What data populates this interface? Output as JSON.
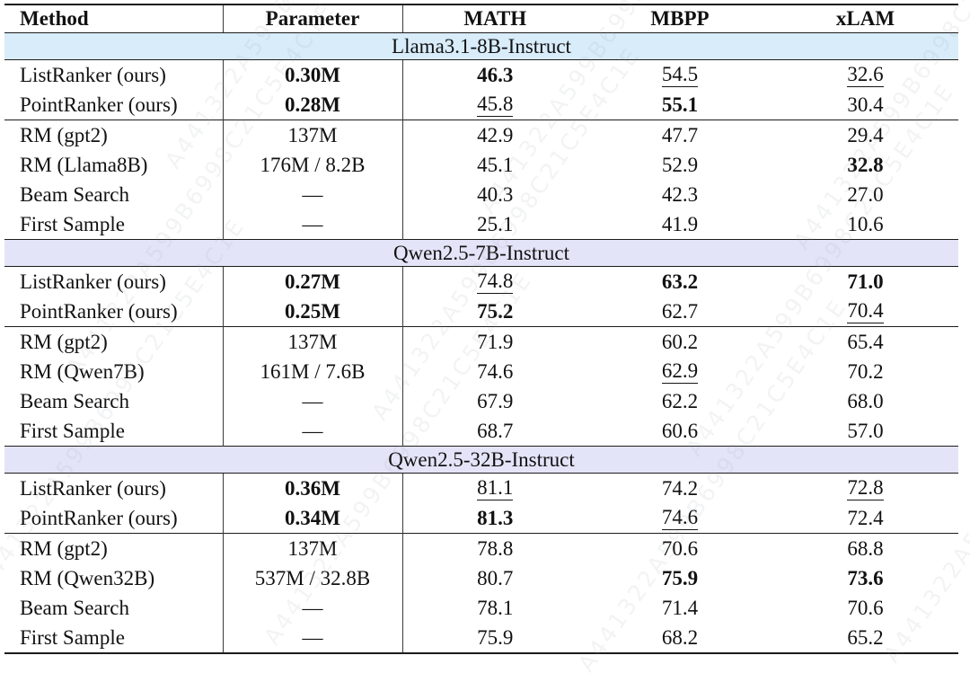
{
  "watermark": {
    "text": "A441322A599B6998C21C5E4C1E"
  },
  "colors": {
    "band_llama": "#d8ecfa",
    "band_qwen": "#e4e4f9",
    "rule": "#1c1c1c",
    "text": "#111111"
  },
  "table": {
    "columns": [
      "Method",
      "Parameter",
      "MATH",
      "MBPP",
      "xLAM"
    ],
    "sections": [
      {
        "title": "Llama3.1-8B-Instruct",
        "band_color": "#d8ecfa",
        "groups": [
          {
            "rows": [
              {
                "method": "ListRanker (ours)",
                "parameter": {
                  "text": "0.30M",
                  "bold": true
                },
                "values": [
                  {
                    "text": "46.3",
                    "bold": true
                  },
                  {
                    "text": "54.5",
                    "underline": true
                  },
                  {
                    "text": "32.6",
                    "underline": true
                  }
                ]
              },
              {
                "method": "PointRanker (ours)",
                "parameter": {
                  "text": "0.28M",
                  "bold": true
                },
                "values": [
                  {
                    "text": "45.8",
                    "underline": true
                  },
                  {
                    "text": "55.1",
                    "bold": true
                  },
                  {
                    "text": "30.4"
                  }
                ]
              }
            ]
          },
          {
            "rows": [
              {
                "method": "RM (gpt2)",
                "parameter": {
                  "text": "137M"
                },
                "values": [
                  {
                    "text": "42.9"
                  },
                  {
                    "text": "47.7"
                  },
                  {
                    "text": "29.4"
                  }
                ]
              },
              {
                "method": "RM (Llama8B)",
                "parameter": {
                  "text": "176M / 8.2B"
                },
                "values": [
                  {
                    "text": "45.1"
                  },
                  {
                    "text": "52.9"
                  },
                  {
                    "text": "32.8",
                    "bold": true
                  }
                ]
              },
              {
                "method": "Beam Search",
                "parameter": {
                  "text": "—"
                },
                "values": [
                  {
                    "text": "40.3"
                  },
                  {
                    "text": "42.3"
                  },
                  {
                    "text": "27.0"
                  }
                ]
              },
              {
                "method": "First Sample",
                "parameter": {
                  "text": "—"
                },
                "values": [
                  {
                    "text": "25.1"
                  },
                  {
                    "text": "41.9"
                  },
                  {
                    "text": "10.6"
                  }
                ]
              }
            ]
          }
        ]
      },
      {
        "title": "Qwen2.5-7B-Instruct",
        "band_color": "#e4e4f9",
        "groups": [
          {
            "rows": [
              {
                "method": "ListRanker (ours)",
                "parameter": {
                  "text": "0.27M",
                  "bold": true
                },
                "values": [
                  {
                    "text": "74.8",
                    "underline": true
                  },
                  {
                    "text": "63.2",
                    "bold": true
                  },
                  {
                    "text": "71.0",
                    "bold": true
                  }
                ]
              },
              {
                "method": "PointRanker (ours)",
                "parameter": {
                  "text": "0.25M",
                  "bold": true
                },
                "values": [
                  {
                    "text": "75.2",
                    "bold": true
                  },
                  {
                    "text": "62.7"
                  },
                  {
                    "text": "70.4",
                    "underline": true
                  }
                ]
              }
            ]
          },
          {
            "rows": [
              {
                "method": "RM (gpt2)",
                "parameter": {
                  "text": "137M"
                },
                "values": [
                  {
                    "text": "71.9"
                  },
                  {
                    "text": "60.2"
                  },
                  {
                    "text": "65.4"
                  }
                ]
              },
              {
                "method": "RM (Qwen7B)",
                "parameter": {
                  "text": "161M / 7.6B"
                },
                "values": [
                  {
                    "text": "74.6"
                  },
                  {
                    "text": "62.9",
                    "underline": true
                  },
                  {
                    "text": "70.2"
                  }
                ]
              },
              {
                "method": "Beam Search",
                "parameter": {
                  "text": "—"
                },
                "values": [
                  {
                    "text": "67.9"
                  },
                  {
                    "text": "62.2"
                  },
                  {
                    "text": "68.0"
                  }
                ]
              },
              {
                "method": "First Sample",
                "parameter": {
                  "text": "—"
                },
                "values": [
                  {
                    "text": "68.7"
                  },
                  {
                    "text": "60.6"
                  },
                  {
                    "text": "57.0"
                  }
                ]
              }
            ]
          }
        ]
      },
      {
        "title": "Qwen2.5-32B-Instruct",
        "band_color": "#e4e4f9",
        "groups": [
          {
            "rows": [
              {
                "method": "ListRanker (ours)",
                "parameter": {
                  "text": "0.36M",
                  "bold": true
                },
                "values": [
                  {
                    "text": "81.1",
                    "underline": true
                  },
                  {
                    "text": "74.2"
                  },
                  {
                    "text": "72.8",
                    "underline": true
                  }
                ]
              },
              {
                "method": "PointRanker (ours)",
                "parameter": {
                  "text": "0.34M",
                  "bold": true
                },
                "values": [
                  {
                    "text": "81.3",
                    "bold": true
                  },
                  {
                    "text": "74.6",
                    "underline": true
                  },
                  {
                    "text": "72.4"
                  }
                ]
              }
            ]
          },
          {
            "rows": [
              {
                "method": "RM (gpt2)",
                "parameter": {
                  "text": "137M"
                },
                "values": [
                  {
                    "text": "78.8"
                  },
                  {
                    "text": "70.6"
                  },
                  {
                    "text": "68.8"
                  }
                ]
              },
              {
                "method": "RM (Qwen32B)",
                "parameter": {
                  "text": "537M / 32.8B"
                },
                "values": [
                  {
                    "text": "80.7"
                  },
                  {
                    "text": "75.9",
                    "bold": true
                  },
                  {
                    "text": "73.6",
                    "bold": true
                  }
                ]
              },
              {
                "method": "Beam Search",
                "parameter": {
                  "text": "—"
                },
                "values": [
                  {
                    "text": "78.1"
                  },
                  {
                    "text": "71.4"
                  },
                  {
                    "text": "70.6"
                  }
                ]
              },
              {
                "method": "First Sample",
                "parameter": {
                  "text": "—"
                },
                "values": [
                  {
                    "text": "75.9"
                  },
                  {
                    "text": "68.2"
                  },
                  {
                    "text": "65.2"
                  }
                ]
              }
            ]
          }
        ]
      }
    ]
  }
}
